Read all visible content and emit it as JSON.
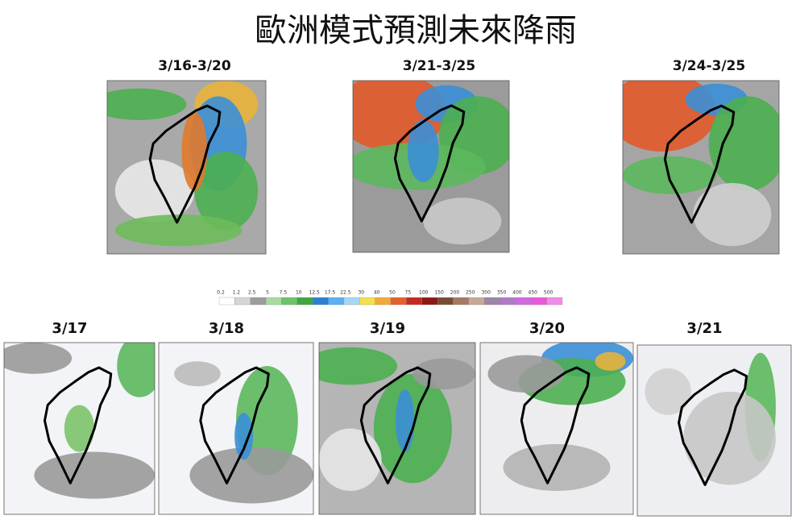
{
  "title": "歐洲模式預測未來降雨",
  "top_panels": [
    {
      "label": "3/16-3/20"
    },
    {
      "label": "3/21-3/25"
    },
    {
      "label": "3/24-3/25"
    }
  ],
  "color_scale": {
    "labels": [
      "0.2",
      "1.2",
      "2.5",
      "5",
      "7.5",
      "10",
      "12.5",
      "17.5",
      "22.5",
      "30",
      "40",
      "50",
      "75",
      "100",
      "150",
      "200",
      "250",
      "300",
      "350",
      "400",
      "450",
      "500"
    ]
  },
  "bottom_panels": [
    {
      "label": "3/17",
      "color": "#111111"
    },
    {
      "label": "3/18",
      "color": "#d9381e"
    },
    {
      "label": "3/19",
      "color": "#d9381e"
    },
    {
      "label": "3/20",
      "color": "#111111"
    },
    {
      "label": "3/21",
      "color": "#111111"
    }
  ]
}
